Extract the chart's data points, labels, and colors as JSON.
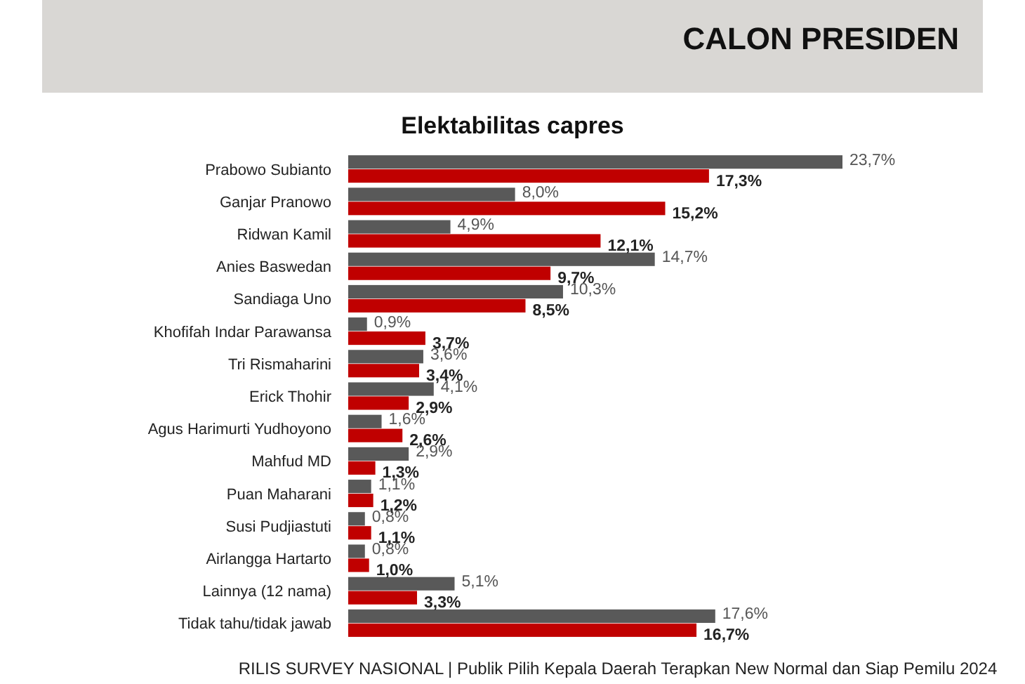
{
  "chart_data": {
    "type": "bar",
    "orientation": "horizontal",
    "title": "CALON PRESIDEN",
    "subtitle": "Elektabilitas capres",
    "categories": [
      "Prabowo Subianto",
      "Ganjar Pranowo",
      "Ridwan Kamil",
      "Anies Baswedan",
      "Sandiaga Uno",
      "Khofifah Indar Parawansa",
      "Tri Rismaharini",
      "Erick Thohir",
      "Agus Harimurti Yudhoyono",
      "Mahfud MD",
      "Puan Maharani",
      "Susi Pudjiastuti",
      "Airlangga Hartarto",
      "Lainnya (12 nama)",
      "Tidak tahu/tidak jawab"
    ],
    "series": [
      {
        "color": "#595959",
        "values": [
          23.7,
          8.0,
          4.9,
          14.7,
          10.3,
          0.9,
          3.6,
          4.1,
          1.6,
          2.9,
          1.1,
          0.8,
          0.8,
          5.1,
          17.6
        ],
        "value_labels": [
          "23,7%",
          "8,0%",
          "4,9%",
          "14,7%",
          "10,3%",
          "0,9%",
          "3,6%",
          "4,1%",
          "1,6%",
          "2,9%",
          "1,1%",
          "0,8%",
          "0,8%",
          "5,1%",
          "17,6%"
        ]
      },
      {
        "color": "#c00000",
        "values": [
          17.3,
          15.2,
          12.1,
          9.7,
          8.5,
          3.7,
          3.4,
          2.9,
          2.6,
          1.3,
          1.2,
          1.1,
          1.0,
          3.3,
          16.7
        ],
        "value_labels": [
          "17,3%",
          "15,2%",
          "12,1%",
          "9,7%",
          "8,5%",
          "3,7%",
          "3,4%",
          "2,9%",
          "2,6%",
          "1,3%",
          "1,2%",
          "1,1%",
          "1,0%",
          "3,3%",
          "16,7%"
        ]
      }
    ],
    "annotations": [
      "RILIS SURVEY NASIONAL | Publik Pilih Kepala Daerah Terapkan New Normal dan Siap Pemilu 2024"
    ]
  }
}
